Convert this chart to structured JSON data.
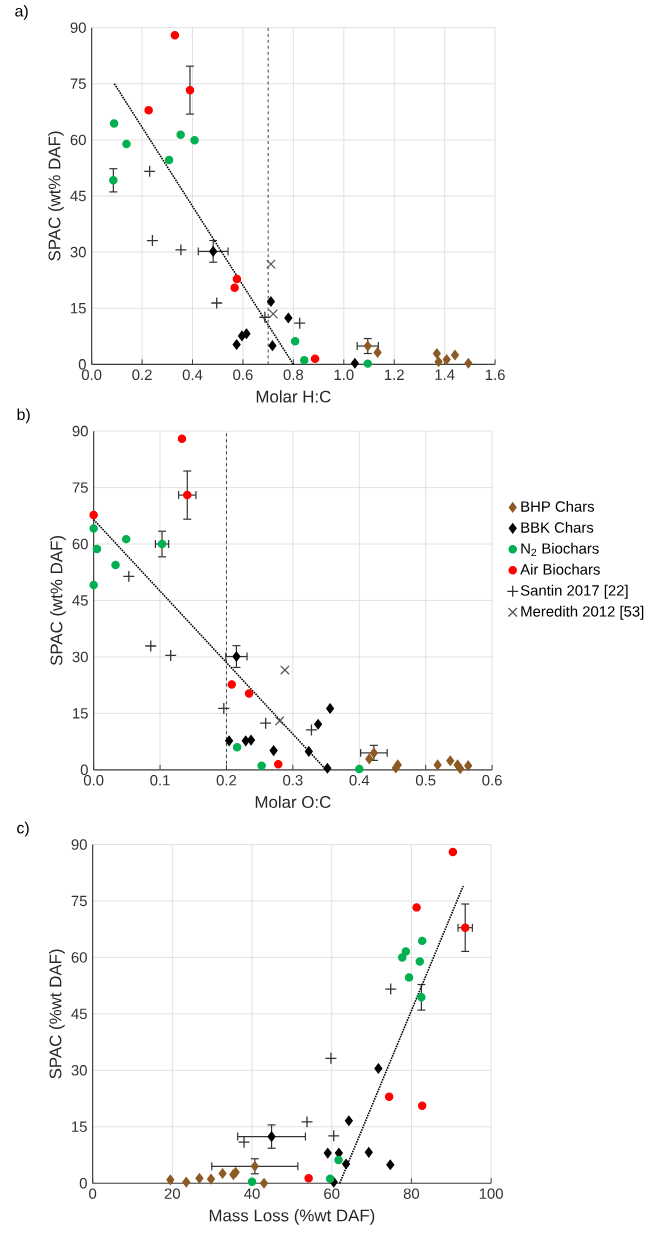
{
  "chart_data": [
    {
      "type": "scatter",
      "title": "a)",
      "xlabel": "Molar H:C",
      "ylabel": "SPAC (wt% DAF)",
      "xlim": [
        0,
        1.6
      ],
      "ylim": [
        0,
        90
      ],
      "xticks": [
        {
          "value": 0,
          "label": "0.0"
        },
        {
          "value": 0.2,
          "label": "0.2"
        },
        {
          "value": 0.4,
          "label": "0.4"
        },
        {
          "value": 0.6,
          "label": "0.6"
        },
        {
          "value": 0.8,
          "label": "0.8"
        },
        {
          "value": 1.0,
          "label": "1.0"
        },
        {
          "value": 1.2,
          "label": "1.2"
        },
        {
          "value": 1.4,
          "label": "1.4"
        },
        {
          "value": 1.6,
          "label": "1.6"
        }
      ],
      "yticks": [
        0,
        15,
        30,
        45,
        60,
        75,
        90
      ],
      "grid": true,
      "ref_lines": [
        {
          "axis": "x",
          "value": 0.7,
          "line_style": "dashed"
        }
      ],
      "series": [
        {
          "color": "#8c5a24",
          "marker": "diamond",
          "x": [
            1.095,
            1.134,
            1.369,
            1.376,
            1.408,
            1.441,
            1.494
          ],
          "values": [
            4.9,
            3.2,
            2.9,
            0.7,
            1.3,
            2.5,
            0.3
          ],
          "errors": [
            2.0,
            null,
            null,
            null,
            null,
            null,
            null
          ],
          "xerrors": [
            0.042,
            null,
            null,
            null,
            null,
            null,
            null
          ]
        },
        {
          "color": "#000000",
          "marker": "diamond",
          "x": [
            0.482,
            0.711,
            0.78,
            0.596,
            0.614,
            0.575,
            0.717,
            1.044
          ],
          "values": [
            30.2,
            16.8,
            12.4,
            7.6,
            8.2,
            5.3,
            5.0,
            0.3
          ],
          "errors": [
            2.9,
            null,
            null,
            null,
            null,
            null,
            null,
            null
          ],
          "xerrors": [
            0.059,
            null,
            null,
            null,
            null,
            null,
            null,
            null
          ]
        },
        {
          "color": "#00b050",
          "marker": "circle",
          "x": [
            0.089,
            0.138,
            0.086,
            0.307,
            0.353,
            0.408,
            0.807,
            0.843,
            1.095
          ],
          "values": [
            64.4,
            58.9,
            49.2,
            54.6,
            61.4,
            59.9,
            6.2,
            1.1,
            0.2
          ],
          "errors": [
            null,
            null,
            3.1,
            null,
            null,
            null,
            null,
            null,
            null
          ]
        },
        {
          "color": "#ff0000",
          "marker": "circle",
          "x": [
            0.33,
            0.39,
            0.226,
            0.576,
            0.567,
            0.886
          ],
          "values": [
            88.0,
            73.3,
            67.9,
            22.8,
            20.5,
            1.5
          ],
          "errors": [
            null,
            6.4,
            null,
            null,
            null,
            null
          ]
        },
        {
          "color": "#333333",
          "marker": "plus",
          "x": [
            0.23,
            0.241,
            0.354,
            0.496,
            0.687,
            0.825
          ],
          "values": [
            51.6,
            33.1,
            30.6,
            16.4,
            12.6,
            11.0
          ]
        },
        {
          "color": "#555555",
          "marker": "cross",
          "x": [
            0.711,
            0.72
          ],
          "values": [
            26.8,
            13.5
          ]
        },
        {
          "type": "line",
          "color": "#000000",
          "marker": "none",
          "line_style": "dotted",
          "x": [
            0.09,
            0.8
          ],
          "values": [
            75,
            0
          ]
        }
      ]
    },
    {
      "type": "scatter",
      "title": "b)",
      "xlabel": "Molar O:C",
      "ylabel": "SPAC (wt% DAF)",
      "xlim": [
        0,
        0.6
      ],
      "ylim": [
        0,
        90
      ],
      "xticks": [
        {
          "value": 0,
          "label": "0.0"
        },
        {
          "value": 0.1,
          "label": "0.1"
        },
        {
          "value": 0.2,
          "label": "0.2"
        },
        {
          "value": 0.3,
          "label": "0.3"
        },
        {
          "value": 0.4,
          "label": "0.4"
        },
        {
          "value": 0.5,
          "label": "0.5"
        },
        {
          "value": 0.6,
          "label": "0.6"
        }
      ],
      "yticks": [
        0,
        15,
        30,
        45,
        60,
        75,
        90
      ],
      "grid": true,
      "legend": "right",
      "ref_lines": [
        {
          "axis": "x",
          "value": 0.2,
          "line_style": "dashed"
        }
      ],
      "series": [
        {
          "name": "BHP Chars",
          "color": "#8c5a24",
          "marker": "diamond",
          "x": [
            0.422,
            0.415,
            0.455,
            0.458,
            0.518,
            0.537,
            0.548,
            0.552,
            0.564
          ],
          "values": [
            4.5,
            2.9,
            0.5,
            1.3,
            1.3,
            2.4,
            1.3,
            0.3,
            1.1
          ],
          "errors": [
            2.0,
            null,
            null,
            null,
            null,
            null,
            null,
            null,
            null
          ],
          "xerrors": [
            0.02,
            null,
            null,
            null,
            null,
            null,
            null,
            null,
            null
          ]
        },
        {
          "name": "BBK Chars",
          "color": "#000000",
          "marker": "diamond",
          "x": [
            0.215,
            0.356,
            0.338,
            0.324,
            0.352,
            0.271,
            0.237,
            0.229,
            0.204
          ],
          "values": [
            30.1,
            16.3,
            12.1,
            4.9,
            0.4,
            5.1,
            7.9,
            7.7,
            7.7
          ],
          "errors": [
            2.9,
            null,
            null,
            null,
            null,
            null,
            null,
            null,
            null
          ],
          "xerrors": [
            0.016,
            null,
            null,
            null,
            null,
            null,
            null,
            null,
            null
          ]
        },
        {
          "name": "N$_{2}$ Biochars",
          "color": "#00b050",
          "marker": "circle",
          "x": [
            0.0,
            0.005,
            0.0,
            0.033,
            0.049,
            0.103,
            0.216,
            0.253,
            0.4
          ],
          "values": [
            64.1,
            58.7,
            49.1,
            54.4,
            61.3,
            60.0,
            6.0,
            1.1,
            0.2
          ],
          "errors": [
            null,
            null,
            null,
            null,
            null,
            3.4,
            null,
            null,
            null
          ],
          "xerrors": [
            null,
            null,
            null,
            null,
            null,
            0.01,
            null,
            null,
            null
          ]
        },
        {
          "name": "Air Biochars",
          "color": "#ff0000",
          "marker": "circle",
          "x": [
            0.0,
            0.133,
            0.141,
            0.208,
            0.234,
            0.278
          ],
          "values": [
            67.7,
            88.0,
            73.0,
            22.7,
            20.3,
            1.5
          ],
          "errors": [
            null,
            null,
            6.4,
            null,
            null,
            null
          ],
          "xerrors": [
            null,
            null,
            0.013,
            null,
            null,
            null
          ]
        },
        {
          "name": "Santin 2017 [22]",
          "color": "#333333",
          "marker": "plus",
          "x": [
            0.053,
            0.086,
            0.116,
            0.196,
            0.259,
            0.328
          ],
          "values": [
            51.4,
            32.9,
            30.4,
            16.3,
            12.4,
            10.6
          ]
        },
        {
          "name": "Meredith 2012 [53]",
          "color": "#555555",
          "marker": "cross",
          "x": [
            0.288,
            0.28
          ],
          "values": [
            26.5,
            13.0
          ]
        },
        {
          "type": "line",
          "color": "#000000",
          "marker": "none",
          "line_style": "dotted",
          "x": [
            0.0,
            0.35
          ],
          "values": [
            66.5,
            0
          ]
        }
      ]
    },
    {
      "type": "scatter",
      "title": "c)",
      "xlabel": "Mass Loss (%wt DAF)",
      "ylabel": "SPAC (%wt DAF)",
      "xlim": [
        0,
        100
      ],
      "ylim": [
        0,
        90
      ],
      "xticks": [
        0,
        20,
        40,
        60,
        80,
        100
      ],
      "yticks": [
        0,
        15,
        30,
        45,
        60,
        75,
        90
      ],
      "grid": true,
      "series": [
        {
          "color": "#8c5a24",
          "marker": "diamond",
          "x": [
            19.5,
            23.5,
            26.8,
            29.7,
            32.6,
            35.3,
            35.9,
            40.7,
            43.0
          ],
          "values": [
            0.9,
            0.3,
            1.3,
            1.1,
            2.6,
            2.3,
            2.9,
            4.5,
            0.0
          ],
          "errors": [
            null,
            null,
            null,
            null,
            null,
            null,
            null,
            2.0,
            null
          ],
          "xerrors": [
            null,
            null,
            null,
            null,
            null,
            null,
            null,
            10.8,
            null
          ]
        },
        {
          "color": "#000000",
          "marker": "diamond",
          "x": [
            44.9,
            71.7,
            64.3,
            59.0,
            61.8,
            69.3,
            63.6,
            74.7,
            60.5
          ],
          "values": [
            12.4,
            30.5,
            16.6,
            8.0,
            8.0,
            8.2,
            5.1,
            4.9,
            0.3
          ],
          "errors": [
            3.1,
            null,
            null,
            null,
            null,
            null,
            null,
            null,
            null
          ],
          "xerrors": [
            8.5,
            null,
            null,
            null,
            null,
            null,
            null,
            null,
            null
          ]
        },
        {
          "color": "#00b050",
          "marker": "circle",
          "x": [
            82.7,
            78.6,
            77.7,
            82.1,
            79.4,
            82.5,
            61.7,
            59.6,
            40.0
          ],
          "values": [
            64.4,
            61.6,
            60.0,
            58.9,
            54.7,
            49.4,
            6.2,
            1.2,
            0.4
          ],
          "errors": [
            null,
            null,
            null,
            null,
            null,
            3.4,
            null,
            null,
            null
          ]
        },
        {
          "color": "#ff0000",
          "marker": "circle",
          "x": [
            90.4,
            81.3,
            93.5,
            74.4,
            82.7,
            54.2
          ],
          "values": [
            88.0,
            73.3,
            67.9,
            23.0,
            20.6,
            1.3
          ],
          "errors": [
            null,
            null,
            6.3,
            null,
            null,
            null
          ],
          "xerrors": [
            null,
            null,
            1.8,
            null,
            null,
            null
          ]
        },
        {
          "color": "#333333",
          "marker": "plus",
          "x": [
            38.0,
            53.8,
            59.8,
            60.5,
            74.8
          ],
          "values": [
            10.9,
            16.3,
            33.2,
            12.6,
            51.6
          ]
        },
        {
          "type": "line",
          "color": "#000000",
          "marker": "none",
          "line_style": "dotted",
          "x": [
            62,
            93
          ],
          "values": [
            0,
            79
          ]
        }
      ]
    }
  ]
}
